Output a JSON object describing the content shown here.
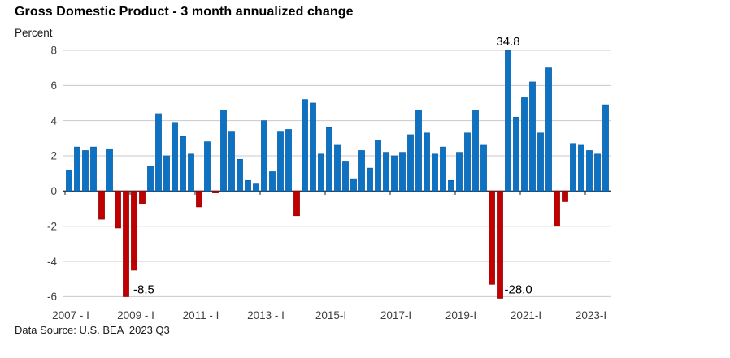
{
  "header": {
    "title": "Gross Domestic Product - 3 month annualized change",
    "unit": "Percent"
  },
  "footer": {
    "source": "Data Source: U.S. BEA  2023 Q3"
  },
  "chart_data": {
    "type": "bar",
    "title": "Gross Domestic Product - 3 month annualized change",
    "ylabel": "Percent",
    "xlabel": "",
    "ylim": [
      -6,
      8
    ],
    "yticks": [
      8,
      6,
      4,
      2,
      0,
      -2,
      -4,
      -6
    ],
    "grid": true,
    "legend": "none",
    "clip_to_ylim": true,
    "categories": [
      "2007 Q1",
      "2007 Q2",
      "2007 Q3",
      "2007 Q4",
      "2008 Q1",
      "2008 Q2",
      "2008 Q3",
      "2008 Q4",
      "2009 Q1",
      "2009 Q2",
      "2009 Q3",
      "2009 Q4",
      "2010 Q1",
      "2010 Q2",
      "2010 Q3",
      "2010 Q4",
      "2011 Q1",
      "2011 Q2",
      "2011 Q3",
      "2011 Q4",
      "2012 Q1",
      "2012 Q2",
      "2012 Q3",
      "2012 Q4",
      "2013 Q1",
      "2013 Q2",
      "2013 Q3",
      "2013 Q4",
      "2014 Q1",
      "2014 Q2",
      "2014 Q3",
      "2014 Q4",
      "2015 Q1",
      "2015 Q2",
      "2015 Q3",
      "2015 Q4",
      "2016 Q1",
      "2016 Q2",
      "2016 Q3",
      "2016 Q4",
      "2017 Q1",
      "2017 Q2",
      "2017 Q3",
      "2017 Q4",
      "2018 Q1",
      "2018 Q2",
      "2018 Q3",
      "2018 Q4",
      "2019 Q1",
      "2019 Q2",
      "2019 Q3",
      "2019 Q4",
      "2020 Q1",
      "2020 Q2",
      "2020 Q3",
      "2020 Q4",
      "2021 Q1",
      "2021 Q2",
      "2021 Q3",
      "2021 Q4",
      "2022 Q1",
      "2022 Q2",
      "2022 Q3",
      "2022 Q4",
      "2023 Q1",
      "2023 Q2",
      "2023 Q3"
    ],
    "values": [
      1.2,
      2.5,
      2.3,
      2.5,
      -1.6,
      2.4,
      -2.1,
      -8.5,
      -4.5,
      -0.7,
      1.4,
      4.4,
      2.0,
      3.9,
      3.1,
      2.1,
      -0.9,
      2.8,
      -0.1,
      4.6,
      3.4,
      1.8,
      0.6,
      0.4,
      4.0,
      1.1,
      3.4,
      3.5,
      -1.4,
      5.2,
      5.0,
      2.1,
      3.6,
      2.6,
      1.7,
      0.7,
      2.3,
      1.3,
      2.9,
      2.2,
      2.0,
      2.2,
      3.2,
      4.6,
      3.3,
      2.1,
      2.5,
      0.6,
      2.2,
      3.3,
      4.6,
      2.6,
      -5.3,
      -28.0,
      34.8,
      4.2,
      5.3,
      6.2,
      3.3,
      7.0,
      -2.0,
      -0.6,
      2.7,
      2.6,
      2.3,
      2.1,
      4.9
    ],
    "xticks": [
      {
        "index": 0,
        "label": "2007 - I"
      },
      {
        "index": 8,
        "label": "2009 - I"
      },
      {
        "index": 16,
        "label": "2011 - I"
      },
      {
        "index": 24,
        "label": "2013 - I"
      },
      {
        "index": 32,
        "label": "2015-I"
      },
      {
        "index": 40,
        "label": "2017-I"
      },
      {
        "index": 48,
        "label": "2019-I"
      },
      {
        "index": 56,
        "label": "2021-I"
      },
      {
        "index": 64,
        "label": "2023-I"
      }
    ],
    "annotations": [
      {
        "index": 7,
        "text": "-8.5",
        "placement": "bottom-right"
      },
      {
        "index": 53,
        "text": "-28.0",
        "placement": "bottom-right"
      },
      {
        "index": 54,
        "text": "34.8",
        "placement": "top"
      }
    ],
    "colors": {
      "positive": "#0E72C3",
      "positive_border": "#0A5FA8",
      "negative": "#C00000",
      "negative_border": "#9A0000",
      "grid": "#C9C9C9",
      "axis": "#3B3B3B",
      "tick_label": "#404040",
      "annotation": "#000000"
    }
  }
}
